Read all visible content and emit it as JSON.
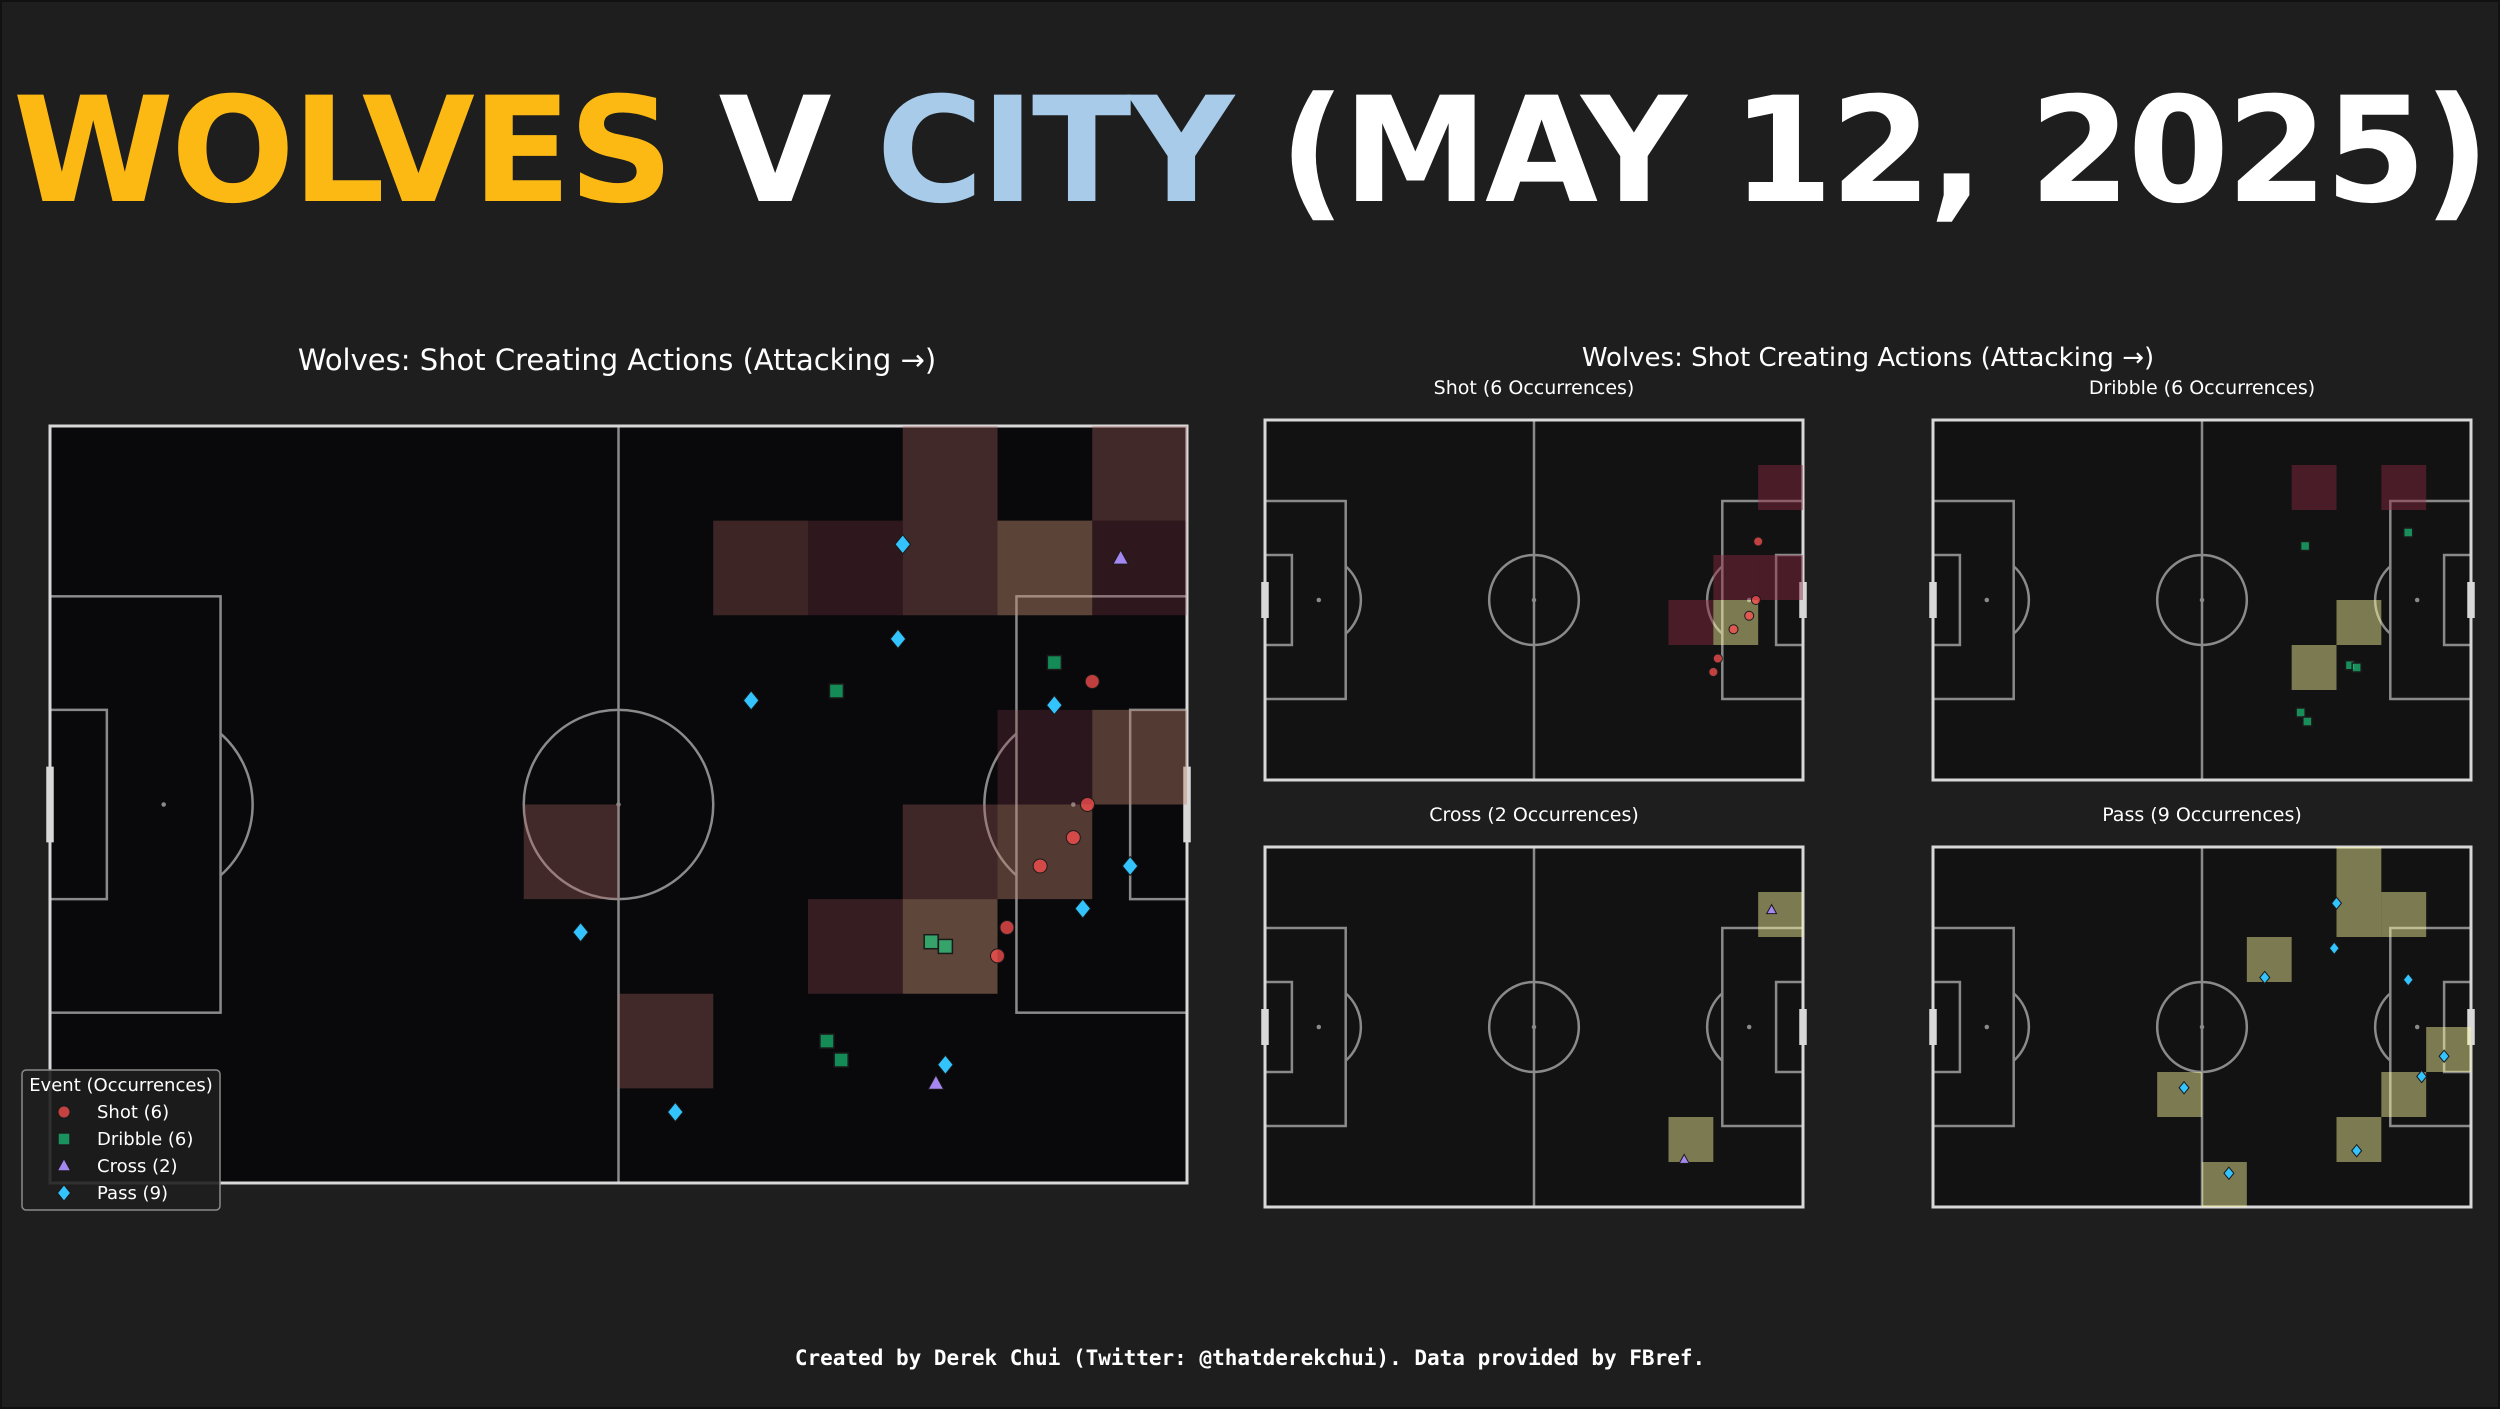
{
  "headline": {
    "parts": [
      {
        "text": "WOLVES",
        "color": "#fdb913"
      },
      {
        "text": " V ",
        "color": "#ffffff"
      },
      {
        "text": "CITY",
        "color": "#a7cbe8"
      },
      {
        "text": " (MAY 12, 2025)",
        "color": "#ffffff"
      }
    ]
  },
  "credit": "Created by Derek Chui (Twitter: @thatderekchui). Data provided by FBref.",
  "colors": {
    "background": "#1e1e1e",
    "pitch_main": "#09090c",
    "pitch_small": "#121212",
    "line": "#8a8a8a",
    "shot": "#ff5050",
    "dribble": "#1de28a",
    "cross": "#a487f0",
    "pass": "#33c4ff",
    "heat_high": "#fffaa0",
    "heat_low": "#8e2a45"
  },
  "chart_data": [
    {
      "type": "scatter",
      "title": "Wolves: Shot Creating Actions (Attacking →)",
      "xlim": [
        0,
        120
      ],
      "ylim": [
        0,
        80
      ],
      "legend": {
        "title": "Event (Occurrences)",
        "placement": "bottom-left",
        "entries": [
          {
            "label": "Shot (6)",
            "marker": "circle",
            "color": "#ff5050"
          },
          {
            "label": "Dribble (6)",
            "marker": "square",
            "color": "#1de28a"
          },
          {
            "label": "Cross (2)",
            "marker": "triangle",
            "color": "#a487f0"
          },
          {
            "label": "Pass (9)",
            "marker": "diamond",
            "color": "#33c4ff"
          }
        ]
      },
      "heatmap_cells": [
        {
          "x": 110,
          "y": 70,
          "v": 0.3
        },
        {
          "x": 70,
          "y": 60,
          "v": 0.25
        },
        {
          "x": 80,
          "y": 60,
          "v": 0.12
        },
        {
          "x": 90,
          "y": 70,
          "v": 0.3
        },
        {
          "x": 90,
          "y": 60,
          "v": 0.3
        },
        {
          "x": 100,
          "y": 60,
          "v": 0.48
        },
        {
          "x": 110,
          "y": 60,
          "v": 0.12
        },
        {
          "x": 100,
          "y": 40,
          "v": 0.1
        },
        {
          "x": 110,
          "y": 40,
          "v": 0.42
        },
        {
          "x": 50,
          "y": 30,
          "v": 0.3
        },
        {
          "x": 90,
          "y": 30,
          "v": 0.28
        },
        {
          "x": 100,
          "y": 30,
          "v": 0.42
        },
        {
          "x": 80,
          "y": 20,
          "v": 0.18
        },
        {
          "x": 90,
          "y": 20,
          "v": 0.5
        },
        {
          "x": 60,
          "y": 10,
          "v": 0.3
        }
      ],
      "series": [
        {
          "name": "Shot (6)",
          "marker": "circle",
          "points": [
            [
              110,
              53
            ],
            [
              109.5,
              40
            ],
            [
              108,
              36.5
            ],
            [
              104.5,
              33.5
            ],
            [
              101,
              27
            ],
            [
              100,
              24
            ]
          ]
        },
        {
          "name": "Dribble (6)",
          "marker": "square",
          "points": [
            [
              106,
              55
            ],
            [
              83,
              52
            ],
            [
              93,
              25.5
            ],
            [
              94.5,
              25
            ],
            [
              82,
              15
            ],
            [
              83.5,
              13
            ]
          ]
        },
        {
          "name": "Cross (2)",
          "marker": "triangle",
          "points": [
            [
              113,
              66
            ],
            [
              93.5,
              10.5
            ]
          ]
        },
        {
          "name": "Pass (9)",
          "marker": "diamond",
          "points": [
            [
              90,
              67.5
            ],
            [
              89.5,
              57.5
            ],
            [
              74,
              51
            ],
            [
              106,
              50.5
            ],
            [
              114,
              33.5
            ],
            [
              109,
              29
            ],
            [
              56,
              26.5
            ],
            [
              94.5,
              12.5
            ],
            [
              66,
              7.5
            ]
          ]
        }
      ]
    },
    {
      "type": "scatter",
      "title": "Wolves: Shot Creating Actions (Attacking →)",
      "panels": [
        {
          "title": "Shot  (6 Occurrences)",
          "marker": "circle",
          "color": "#ff5050",
          "heatmap_cells": [
            {
              "x": 110,
              "y": 60,
              "v": 0.2
            },
            {
              "x": 100,
              "y": 40,
              "v": 0.3
            },
            {
              "x": 110,
              "y": 40,
              "v": 0.5
            },
            {
              "x": 90,
              "y": 30,
              "v": 0.3
            },
            {
              "x": 100,
              "y": 30,
              "v": 1.0
            }
          ],
          "points": [
            [
              110,
              53
            ],
            [
              109.5,
              40
            ],
            [
              108,
              36.5
            ],
            [
              104.5,
              33.5
            ],
            [
              101,
              27
            ],
            [
              100,
              24
            ]
          ]
        },
        {
          "title": "Dribble  (6 Occurrences)",
          "marker": "square",
          "color": "#1de28a",
          "heatmap_cells": [
            {
              "x": 80,
              "y": 60,
              "v": 0.3
            },
            {
              "x": 100,
              "y": 60,
              "v": 0.3
            },
            {
              "x": 90,
              "y": 30,
              "v": 1.0
            },
            {
              "x": 80,
              "y": 20,
              "v": 1.0
            }
          ],
          "points": [
            [
              106,
              55
            ],
            [
              83,
              52
            ],
            [
              93,
              25.5
            ],
            [
              94.5,
              25
            ],
            [
              82,
              15
            ],
            [
              83.5,
              13
            ]
          ]
        },
        {
          "title": "Cross  (2 Occurrences)",
          "marker": "triangle",
          "color": "#a487f0",
          "heatmap_cells": [
            {
              "x": 110,
              "y": 60,
              "v": 1.0
            },
            {
              "x": 90,
              "y": 10,
              "v": 1.0
            }
          ],
          "points": [
            [
              113,
              66
            ],
            [
              93.5,
              10.5
            ]
          ]
        },
        {
          "title": "Pass  (9 Occurrences)",
          "marker": "diamond",
          "color": "#33c4ff",
          "heatmap_cells": [
            {
              "x": 90,
              "y": 70,
              "v": 1.0
            },
            {
              "x": 90,
              "y": 60,
              "v": 1.0
            },
            {
              "x": 100,
              "y": 60,
              "v": 1.0
            },
            {
              "x": 70,
              "y": 50,
              "v": 1.0
            },
            {
              "x": 110,
              "y": 30,
              "v": 1.0
            },
            {
              "x": 100,
              "y": 20,
              "v": 1.0
            },
            {
              "x": 50,
              "y": 20,
              "v": 1.0
            },
            {
              "x": 90,
              "y": 10,
              "v": 1.0
            },
            {
              "x": 60,
              "y": 0,
              "v": 1.0
            }
          ],
          "points": [
            [
              90,
              67.5
            ],
            [
              89.5,
              57.5
            ],
            [
              74,
              51
            ],
            [
              106,
              50.5
            ],
            [
              114,
              33.5
            ],
            [
              109,
              29
            ],
            [
              56,
              26.5
            ],
            [
              94.5,
              12.5
            ],
            [
              66,
              7.5
            ]
          ]
        }
      ]
    }
  ]
}
